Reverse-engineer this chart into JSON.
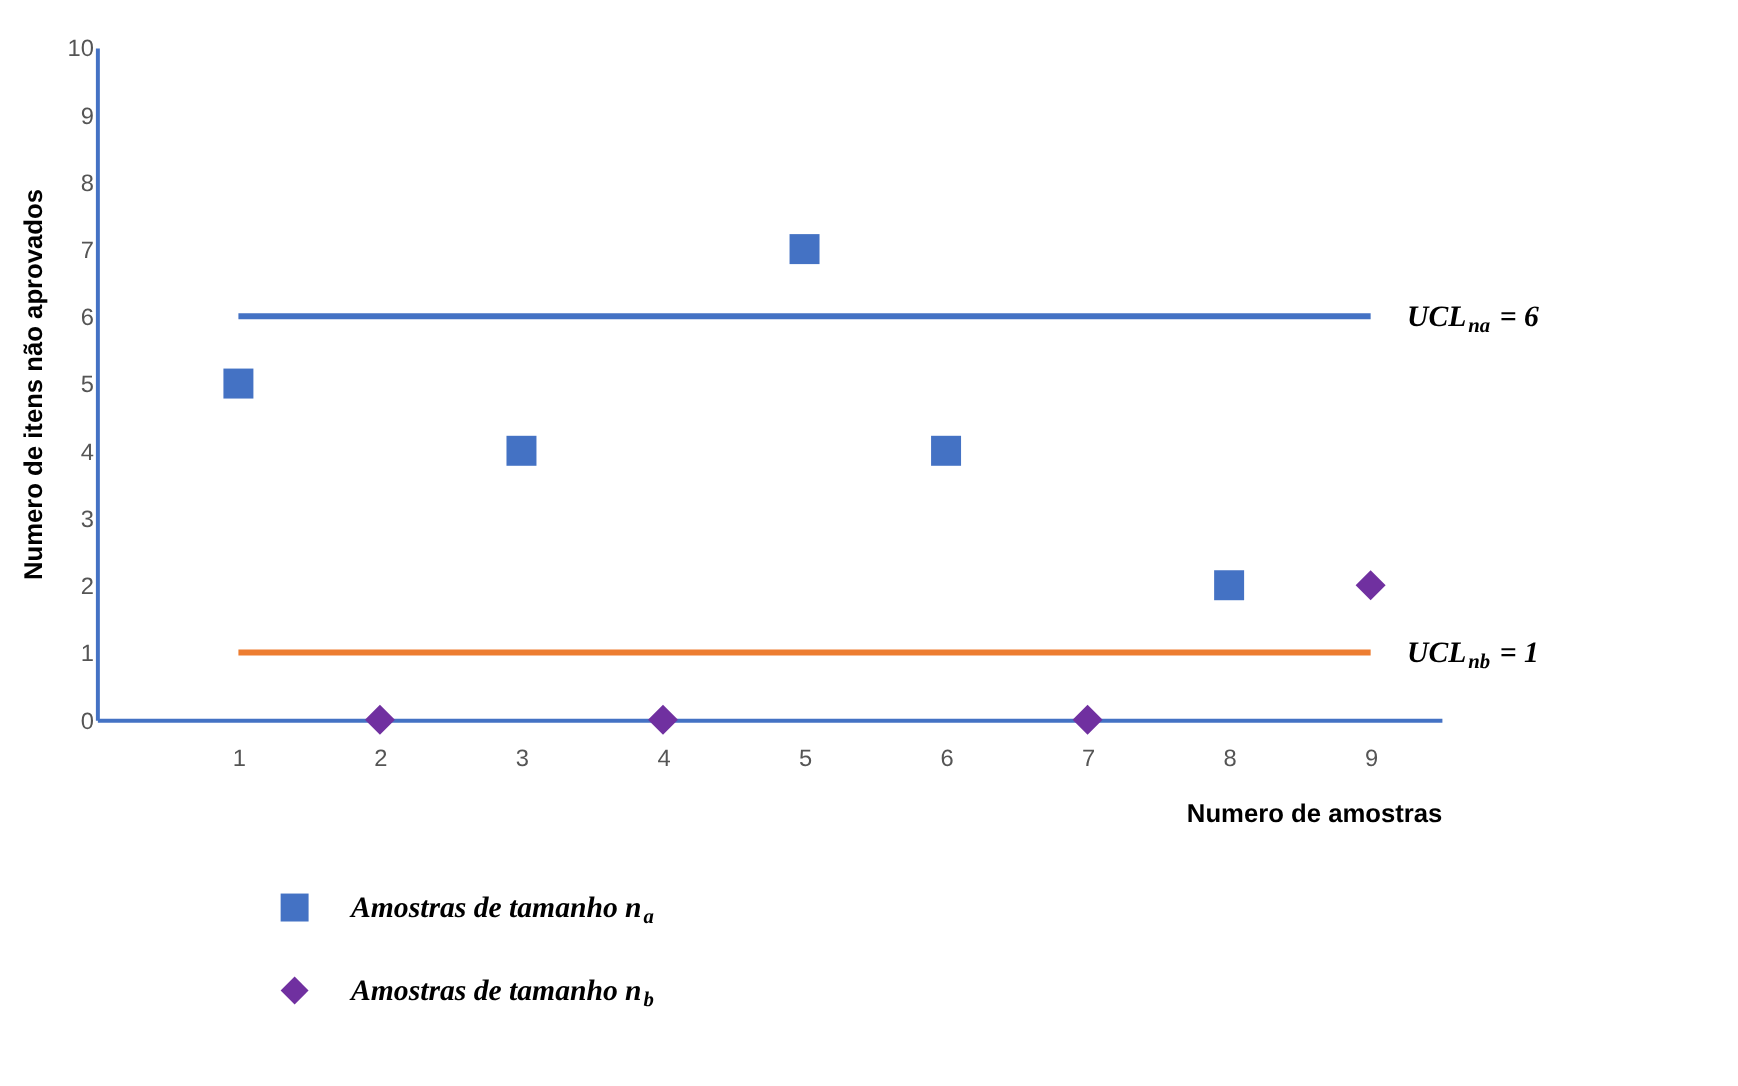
{
  "chart_data": {
    "type": "scatter",
    "xlabel": "Numero de amostras",
    "ylabel": "Numero de itens não aprovados",
    "xlim": [
      0,
      9.5
    ],
    "xticks": [
      1,
      2,
      3,
      4,
      5,
      6,
      7,
      8,
      9
    ],
    "ylim": [
      0,
      10
    ],
    "yticks": [
      0,
      1,
      2,
      3,
      4,
      5,
      6,
      7,
      8,
      9,
      10
    ],
    "grid": false,
    "legend": "bottom",
    "series": [
      {
        "name": "Amostras de tamanho n$_{a}$",
        "color": "#4472c4",
        "marker": "square",
        "x": [
          1,
          3,
          5,
          6,
          8
        ],
        "values": [
          5,
          4,
          7,
          4,
          2
        ]
      },
      {
        "name": "Amostras de tamanho n$_{b}$",
        "color": "#7030a0",
        "marker": "diamond",
        "x": [
          2,
          4,
          7,
          9
        ],
        "values": [
          0,
          0,
          0,
          2
        ]
      }
    ],
    "ref_lines": [
      {
        "axis": "y",
        "value": 6,
        "label": "UCL$_{na}$ = 6",
        "color": "#4472c4"
      },
      {
        "axis": "y",
        "value": 1,
        "label": "UCL$_{nb}$ = 1",
        "color": "#ed7d31"
      }
    ]
  }
}
